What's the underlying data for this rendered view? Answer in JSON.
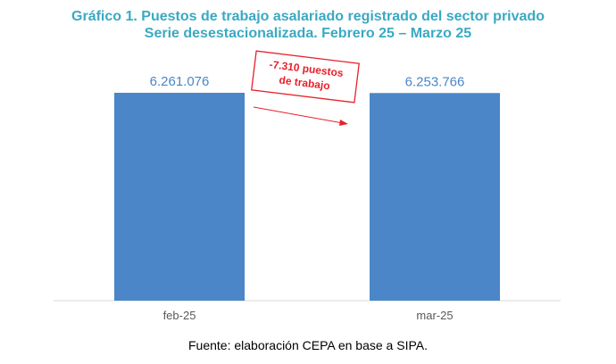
{
  "header": {
    "title": "Gráfico 1. Puestos de trabajo asalariado registrado del sector privado",
    "subtitle": "Serie desestacionalizada. Febrero 25 – Marzo 25"
  },
  "chart_data": {
    "type": "bar",
    "title": "Gráfico 1. Puestos de trabajo asalariado registrado del sector privado",
    "subtitle": "Serie desestacionalizada. Febrero 25 – Marzo 25",
    "categories": [
      "feb-25",
      "mar-25"
    ],
    "values": [
      6261076,
      6253766
    ],
    "data_labels": [
      "6.261.076",
      "6.253.766"
    ],
    "xlabel": "",
    "ylabel": "",
    "grid": false,
    "legend": "none",
    "bar_color": "#4a86c8",
    "label_color": "#4a86c8",
    "annotation": {
      "lines": [
        "-7.310 puestos",
        "de trabajo"
      ],
      "color": "#e8202a"
    }
  },
  "footer": {
    "source": "Fuente: elaboración CEPA en base a SIPA."
  }
}
